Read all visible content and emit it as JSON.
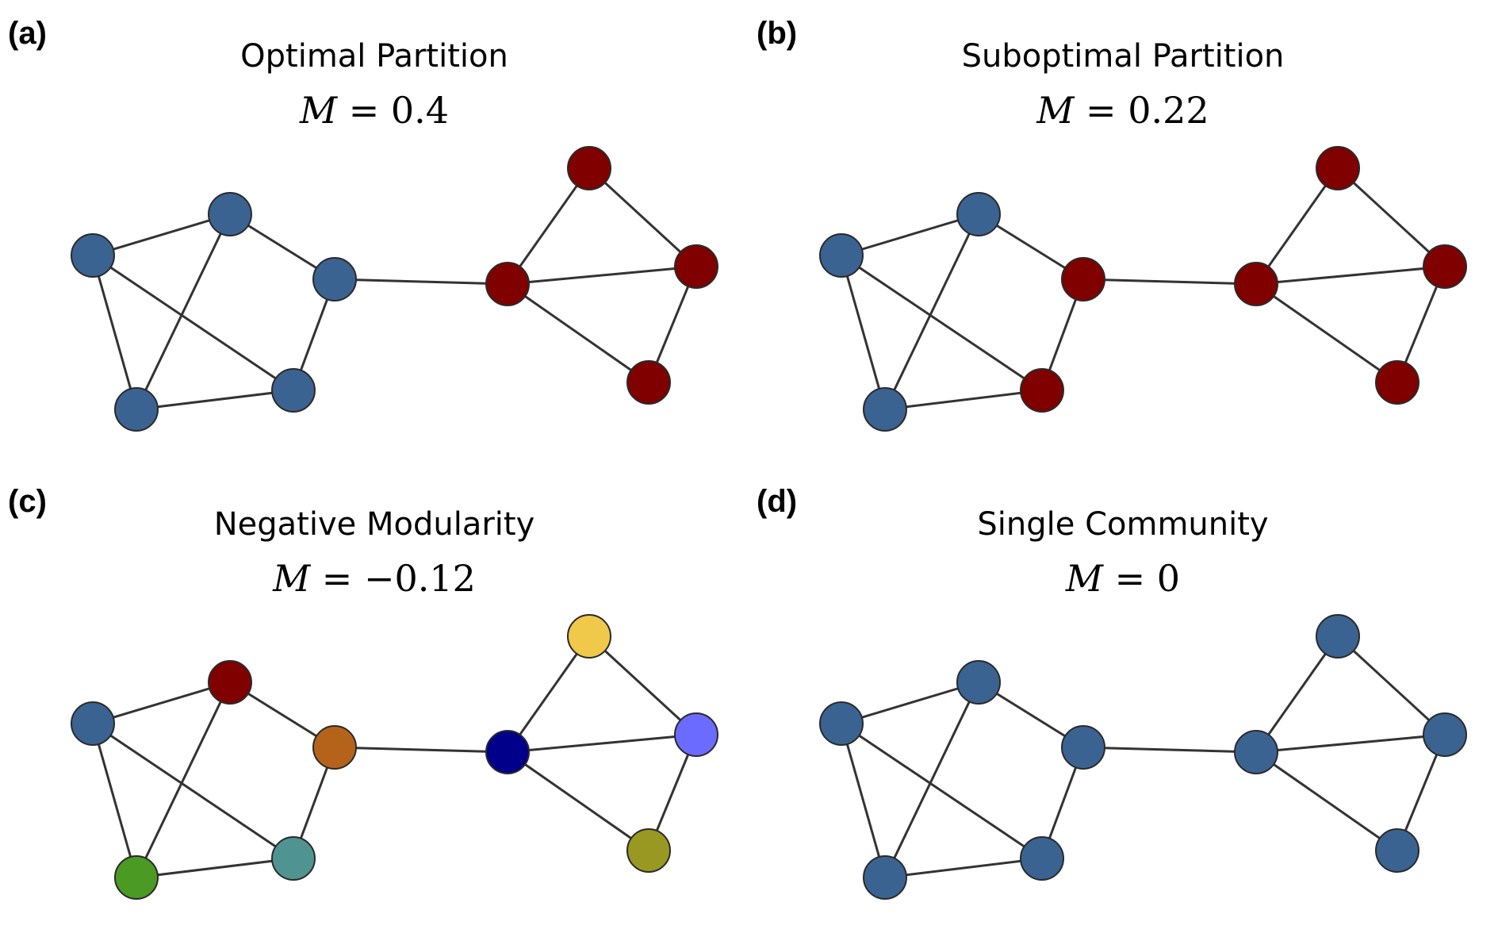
{
  "panels": [
    {
      "label": "(a)",
      "title": "Optimal Partition",
      "eq_var": "M",
      "eq_rest": " = 0.4",
      "node_colors": [
        "#3b6391",
        "#3b6391",
        "#3b6391",
        "#3b6391",
        "#3b6391",
        "#800000",
        "#800000",
        "#800000",
        "#800000"
      ]
    },
    {
      "label": "(b)",
      "title": "Suboptimal Partition",
      "eq_var": "M",
      "eq_rest": " = 0.22",
      "node_colors": [
        "#3b6391",
        "#3b6391",
        "#800000",
        "#3b6391",
        "#800000",
        "#800000",
        "#800000",
        "#800000",
        "#800000"
      ]
    },
    {
      "label": "(c)",
      "title": "Negative Modularity",
      "eq_var": "M",
      "eq_rest": " = −0.12",
      "node_colors": [
        "#3b6391",
        "#800000",
        "#b5631b",
        "#4a9a23",
        "#4f9490",
        "#00008b",
        "#f0c84a",
        "#6b6bff",
        "#989822"
      ]
    },
    {
      "label": "(d)",
      "title": "Single Community",
      "eq_var": "M",
      "eq_rest": " = 0",
      "node_colors": [
        "#3b6391",
        "#3b6391",
        "#3b6391",
        "#3b6391",
        "#3b6391",
        "#3b6391",
        "#3b6391",
        "#3b6391",
        "#3b6391"
      ]
    }
  ],
  "edge_color": "#333333",
  "node_stroke": "#2a2a2a"
}
